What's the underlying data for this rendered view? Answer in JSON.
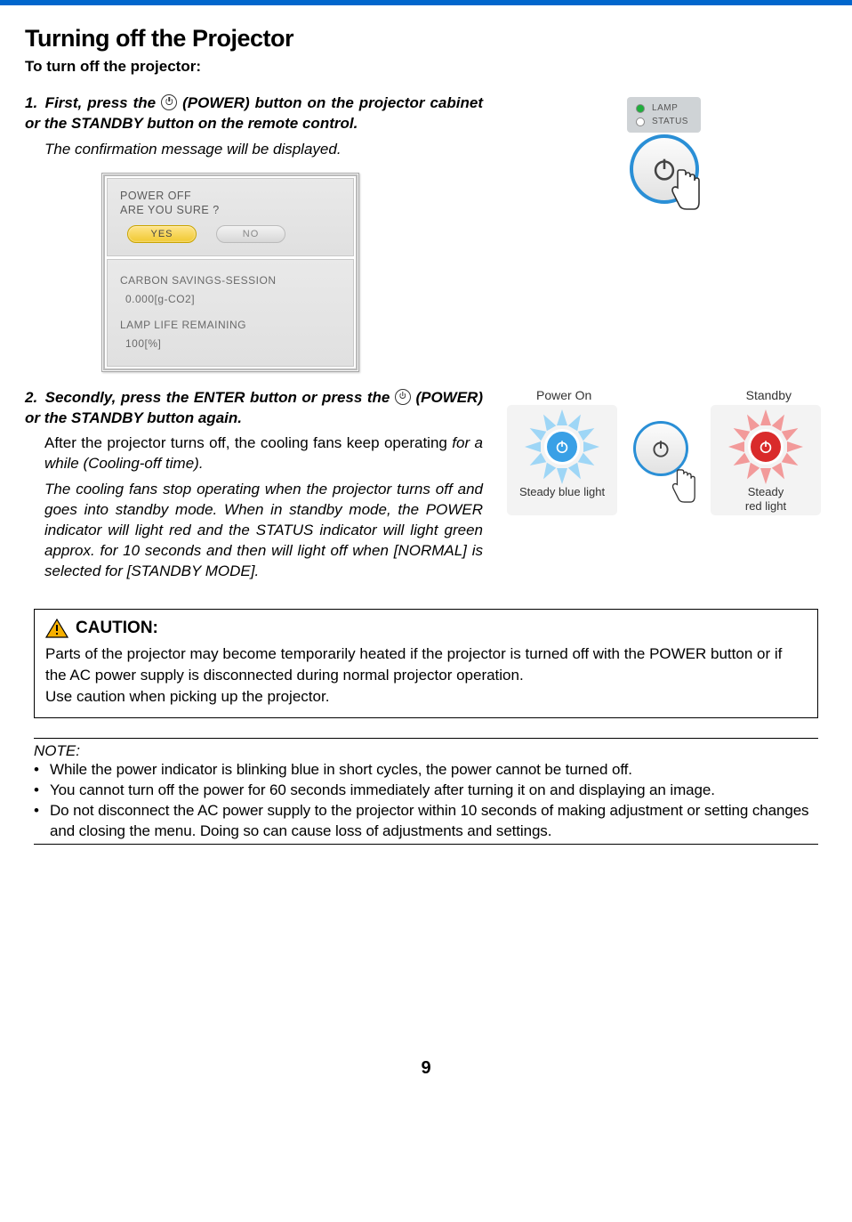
{
  "colors": {
    "topbar": "#0066cc",
    "btn_border": "#2a8fd6",
    "blue_fill": "#39a0e6",
    "red_fill": "#d92b2b",
    "lamp_green": "#1fae3c",
    "burst_blue": "#9ed6f6",
    "burst_red": "#f29a9a",
    "yes_btn": "#f0c830",
    "caution_triangle": "#f6b000"
  },
  "title": "Turning off the Projector",
  "subtitle": "To turn off the projector:",
  "step1": {
    "text_a": "1. First, press the ",
    "text_b": " (POWER) button on the projector cabinet or the STANDBY button on the remote con­trol.",
    "body": "The confirmation message will be displayed."
  },
  "dialog": {
    "line1": "POWER OFF",
    "line2": "ARE YOU SURE ?",
    "yes": "YES",
    "no": "NO",
    "carbon_label": "CARBON SAVINGS-SESSION",
    "carbon_value": "0.000[g-CO2]",
    "lamp_label": "LAMP LIFE REMAINING",
    "lamp_value": "100[%]"
  },
  "indicators": {
    "lamp": "LAMP",
    "status": "STATUS"
  },
  "step2": {
    "text_a": "2. Secondly, press the ENTER button or press the ",
    "text_b": " (POWER) or the STANDBY button again.",
    "body1": "After the projector turns off, the cooling fans keep operating for a while (Cooling-off time).",
    "body2": "The cooling fans stop operating when the projector turns off and goes into standby mode. When in standby mode, the POWER indicator will light red and the STATUS indicator will light green approx. for 10 seconds and then will light off when [NORMAL] is selected for [STANDBY MODE]."
  },
  "states": {
    "on_label": "Power On",
    "standby_label": "Standby",
    "on_caption": "Steady blue light",
    "standby_caption": "Steady red light"
  },
  "caution": {
    "title": "CAUTION:",
    "body": "Parts of the projector may become temporarily heated if the projector is turned off with the POWER button or if the AC power supply is disconnected during normal projector operation.\nUse caution when picking up the projector."
  },
  "note": {
    "head": "NOTE:",
    "items": [
      "While the power indicator is blinking blue in short cycles, the power cannot be turned off.",
      "You cannot turn off the power for 60 seconds immediately after turning it on and displaying an image.",
      "Do not disconnect the AC power supply to the projector within 10 seconds of making adjustment or setting changes and closing the menu. Doing so can cause loss of adjustments and settings."
    ]
  },
  "page_number": "9"
}
